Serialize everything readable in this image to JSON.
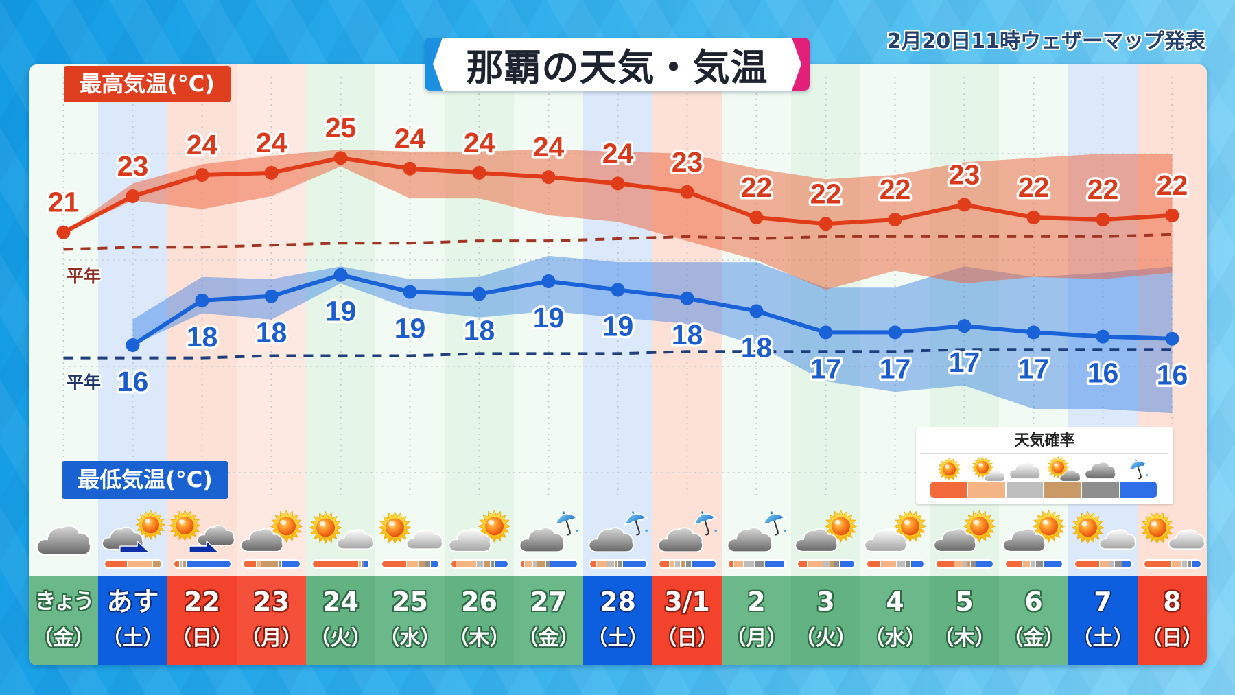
{
  "header": {
    "title": "那覇の天気・気温",
    "published": "2月20日11時ウェザーマップ発表"
  },
  "labels": {
    "max_temp": "最高気温(°C)",
    "min_temp": "最低気温(°C)",
    "normal_high": "平年",
    "normal_low": "平年"
  },
  "legend": {
    "title": "天気確率",
    "items": [
      {
        "icon": "sun-icon",
        "icon_type": "lg_sunny",
        "color": "#f26a3a"
      },
      {
        "icon": "sun-light-cloud-icon",
        "icon_type": "lg_sun_light_cloud",
        "color": "#f4b483"
      },
      {
        "icon": "light-cloud-icon",
        "icon_type": "lg_cloud_light",
        "color": "#bdbdbd"
      },
      {
        "icon": "sun-gray-cloud-icon",
        "icon_type": "lg_sun_gray_cloud",
        "color": "#c99a66"
      },
      {
        "icon": "gray-cloud-icon",
        "icon_type": "lg_cloud_gray",
        "color": "#8e8e8e"
      },
      {
        "icon": "umbrella-icon",
        "icon_type": "lg_umbrella",
        "color": "#2e6fe8"
      }
    ]
  },
  "colors": {
    "high": "#e03c1a",
    "low": "#1a62d8",
    "max_label_bg": "#df3f1f",
    "min_label_bg": "#1a62d2",
    "title_left_accent": "#1b8fe0",
    "title_right_accent": "#e2207a",
    "weekday_cell": "#6bb98a",
    "saturday_cell": "#0e5fe0",
    "sunday_cell": "#f4432d"
  },
  "days": [
    {
      "date": "きょう",
      "weekday": "（金）",
      "kind": "weekday",
      "tint": "#f1faf3",
      "cell": "#6bb98a",
      "icon": "cloudy-icon",
      "icon_type": "cloudy"
    },
    {
      "date": "あす",
      "weekday": "（土）",
      "kind": "saturday",
      "tint": "#dce9fb",
      "cell": "#0e5fe0",
      "icon": "cloudy-then-sunny-icon",
      "icon_type": "cloudy_then_sunny"
    },
    {
      "date": "22",
      "weekday": "（日）",
      "kind": "sunday",
      "tint": "#fde0d6",
      "cell": "#f4432d",
      "icon": "sunny-then-cloudy-icon",
      "icon_type": "sunny_then_cloudy"
    },
    {
      "date": "23",
      "weekday": "（月）",
      "kind": "holiday",
      "tint": "#fde9e2",
      "cell": "#f5503a",
      "icon": "cloudy-sometimes-sunny-icon",
      "icon_type": "cloudy_sometimes_sunny_gray"
    },
    {
      "date": "24",
      "weekday": "（火）",
      "kind": "weekday",
      "tint": "#e5f6e8",
      "cell": "#63b282",
      "icon": "sunny-sometimes-cloudy-icon",
      "icon_type": "sunny_sometimes_cloudy"
    },
    {
      "date": "25",
      "weekday": "（水）",
      "kind": "weekday",
      "tint": "#f1faf3",
      "cell": "#6bb98a",
      "icon": "sunny-sometimes-cloudy-icon",
      "icon_type": "sunny_sometimes_cloudy"
    },
    {
      "date": "26",
      "weekday": "（木）",
      "kind": "weekday",
      "tint": "#e5f6e8",
      "cell": "#63b282",
      "icon": "cloudy-sometimes-sunny-icon",
      "icon_type": "cloudy_sometimes_sunny_light"
    },
    {
      "date": "27",
      "weekday": "（金）",
      "kind": "weekday",
      "tint": "#f1faf3",
      "cell": "#6bb98a",
      "icon": "cloudy-sometimes-rain-icon",
      "icon_type": "cloudy_sometimes_rain"
    },
    {
      "date": "28",
      "weekday": "（土）",
      "kind": "saturday",
      "tint": "#dce9fb",
      "cell": "#0e5fe0",
      "icon": "cloudy-sometimes-rain-icon",
      "icon_type": "cloudy_sometimes_rain"
    },
    {
      "date": "3/1",
      "weekday": "（日）",
      "kind": "sunday",
      "tint": "#fde0d6",
      "cell": "#f4432d",
      "icon": "cloudy-sometimes-rain-icon",
      "icon_type": "cloudy_sometimes_rain"
    },
    {
      "date": "2",
      "weekday": "（月）",
      "kind": "weekday",
      "tint": "#f1faf3",
      "cell": "#6bb98a",
      "icon": "cloudy-sometimes-rain-icon",
      "icon_type": "cloudy_sometimes_rain"
    },
    {
      "date": "3",
      "weekday": "（火）",
      "kind": "weekday",
      "tint": "#e5f6e8",
      "cell": "#63b282",
      "icon": "cloudy-sometimes-sunny-icon",
      "icon_type": "cloudy_sometimes_sunny_gray"
    },
    {
      "date": "4",
      "weekday": "（水）",
      "kind": "weekday",
      "tint": "#f1faf3",
      "cell": "#6bb98a",
      "icon": "cloudy-sometimes-sunny-icon",
      "icon_type": "cloudy_sometimes_sunny_light"
    },
    {
      "date": "5",
      "weekday": "（木）",
      "kind": "weekday",
      "tint": "#e5f6e8",
      "cell": "#63b282",
      "icon": "cloudy-sometimes-sunny-icon",
      "icon_type": "cloudy_sometimes_sunny_gray"
    },
    {
      "date": "6",
      "weekday": "（金）",
      "kind": "weekday",
      "tint": "#f1faf3",
      "cell": "#6bb98a",
      "icon": "cloudy-sometimes-sunny-icon",
      "icon_type": "cloudy_sometimes_sunny_gray"
    },
    {
      "date": "7",
      "weekday": "（土）",
      "kind": "saturday",
      "tint": "#dce9fb",
      "cell": "#0e5fe0",
      "icon": "sunny-sometimes-cloudy-icon",
      "icon_type": "sunny_sometimes_cloudy"
    },
    {
      "date": "8",
      "weekday": "（日）",
      "kind": "sunday",
      "tint": "#fde0d6",
      "cell": "#f4432d",
      "icon": "sunny-sometimes-cloudy-icon",
      "icon_type": "sunny_sometimes_cloudy"
    }
  ],
  "chart_data": {
    "type": "line",
    "title": "那覇の天気・気温",
    "subtitle": "2月20日11時ウェザーマップ発表",
    "categories": [
      "きょう(金)",
      "あす(土)",
      "22(日)",
      "23(月)",
      "24(火)",
      "25(水)",
      "26(木)",
      "27(金)",
      "28(土)",
      "3/1(日)",
      "2(月)",
      "3(火)",
      "4(水)",
      "5(木)",
      "6(金)",
      "7(土)",
      "8(日)"
    ],
    "xlabel": "",
    "ylabel": "気温(°C)",
    "ylim": [
      10,
      25
    ],
    "y_gridlines": [
      10,
      15,
      20,
      25
    ],
    "grid": true,
    "legend_position": "bottom-right",
    "series": [
      {
        "name": "最高気温(°C)",
        "color": "#e03c1a",
        "labels": [
          21,
          23,
          24,
          24,
          25,
          24,
          24,
          24,
          24,
          23,
          22,
          22,
          22,
          23,
          22,
          22,
          22
        ],
        "values": [
          21.3,
          23.0,
          24.0,
          24.1,
          24.8,
          24.3,
          24.1,
          23.9,
          23.6,
          23.2,
          22.0,
          21.7,
          21.9,
          22.6,
          22.0,
          21.9,
          22.1
        ],
        "range_upper": [
          21.3,
          23.6,
          24.5,
          24.9,
          25.2,
          25.1,
          25.1,
          25.2,
          25.1,
          25.0,
          24.3,
          23.8,
          24.0,
          24.6,
          24.8,
          25.0,
          25.0
        ],
        "range_lower": [
          21.3,
          22.8,
          22.4,
          23.0,
          24.4,
          22.9,
          22.9,
          22.1,
          21.8,
          20.9,
          20.0,
          18.6,
          19.5,
          18.9,
          19.2,
          19.1,
          19.4
        ],
        "normal_label": "平年",
        "normal": [
          20.5,
          20.6,
          20.6,
          20.7,
          20.8,
          20.8,
          20.9,
          20.9,
          21.0,
          21.1,
          21.0,
          21.1,
          21.1,
          21.1,
          21.1,
          21.1,
          21.2
        ]
      },
      {
        "name": "最低気温(°C)",
        "color": "#1a62d8",
        "labels": [
          null,
          16,
          18,
          18,
          19,
          19,
          18,
          19,
          19,
          18,
          18,
          17,
          17,
          17,
          17,
          16,
          16
        ],
        "values": [
          null,
          16.0,
          18.1,
          18.3,
          19.3,
          18.5,
          18.4,
          19.0,
          18.6,
          18.2,
          17.6,
          16.6,
          16.6,
          16.9,
          16.6,
          16.4,
          16.3
        ],
        "range_upper": [
          null,
          17.2,
          19.2,
          19.1,
          19.7,
          19.1,
          19.2,
          20.2,
          19.9,
          19.9,
          19.9,
          18.7,
          18.7,
          19.7,
          19.2,
          19.4,
          19.7
        ],
        "range_lower": [
          null,
          16.0,
          17.5,
          17.2,
          18.9,
          17.7,
          17.3,
          17.6,
          17.3,
          17.0,
          16.0,
          14.3,
          13.8,
          14.1,
          13.0,
          13.0,
          12.8
        ],
        "normal_label": "平年",
        "normal": [
          15.4,
          15.4,
          15.4,
          15.5,
          15.5,
          15.5,
          15.6,
          15.6,
          15.6,
          15.7,
          15.7,
          15.7,
          15.7,
          15.8,
          15.8,
          15.8,
          15.8
        ]
      }
    ],
    "weather_probability": {
      "title": "天気確率",
      "segment_icons": [
        "sun-icon",
        "sun-light-cloud-icon",
        "light-cloud-icon",
        "sun-gray-cloud-icon",
        "gray-cloud-icon",
        "umbrella-icon"
      ],
      "segment_colors": [
        "#f26a3a",
        "#f4b483",
        "#bdbdbd",
        "#c99a66",
        "#8e8e8e",
        "#2e6fe8"
      ],
      "per_day_percent": [
        null,
        [
          41,
          45,
          0,
          14,
          0,
          0
        ],
        [
          9,
          0,
          4,
          7,
          0,
          80
        ],
        [
          24,
          8,
          0,
          30,
          5,
          33
        ],
        [
          84,
          4,
          0,
          0,
          4,
          8
        ],
        [
          46,
          20,
          0,
          12,
          9,
          13
        ],
        [
          9,
          37,
          12,
          12,
          6,
          24
        ],
        [
          7,
          15,
          6,
          15,
          7,
          50
        ],
        [
          12,
          19,
          12,
          6,
          7,
          44
        ],
        [
          19,
          9,
          9,
          9,
          9,
          45
        ],
        [
          10,
          16,
          19,
          0,
          19,
          36
        ],
        [
          18,
          28,
          12,
          6,
          9,
          27
        ],
        [
          25,
          28,
          16,
          0,
          9,
          22
        ],
        [
          33,
          16,
          6,
          6,
          9,
          30
        ],
        [
          31,
          13,
          9,
          0,
          13,
          34
        ],
        [
          46,
          16,
          9,
          0,
          13,
          16
        ],
        [
          50,
          19,
          9,
          0,
          6,
          16
        ]
      ]
    }
  }
}
